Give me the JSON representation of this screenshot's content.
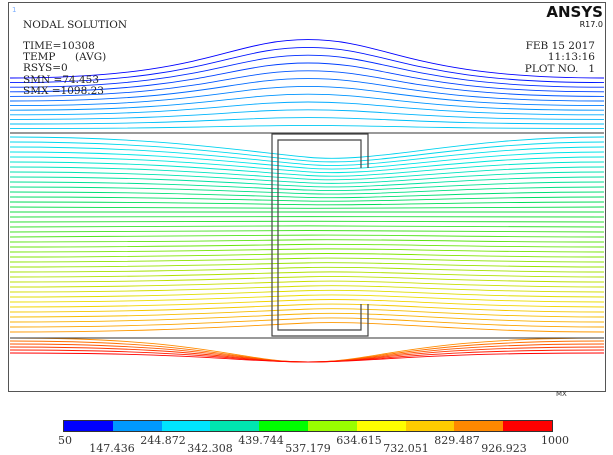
{
  "header": {
    "window_number": "1",
    "title": "NODAL SOLUTION",
    "time": "TIME=10308",
    "temp_label": "TEMP",
    "temp_avg": "(AVG)",
    "rsys": "RSYS=0",
    "smn": "SMN =74.453",
    "smx": "SMX =1098.23"
  },
  "brand": {
    "name": "ANSYS",
    "release": "R17.0"
  },
  "info": {
    "date": "FEB 15 2017",
    "time": "11:13:16",
    "plot_no": "PLOT NO.   1"
  },
  "marker": {
    "mx": "MX"
  },
  "legend": {
    "colors": [
      "#0000ff",
      "#0099ff",
      "#00e5ff",
      "#00e6b0",
      "#00ff00",
      "#99ff00",
      "#ffff00",
      "#ffcc00",
      "#ff8800",
      "#ff0000"
    ],
    "top_labels": [
      "50",
      "244.872",
      "439.744",
      "634.615",
      "829.487",
      "1000"
    ],
    "bottom_labels": [
      "147.436",
      "342.308",
      "537.179",
      "732.051",
      "926.923"
    ]
  },
  "chart_data": {
    "type": "heatmap",
    "series": [
      {
        "values": [
          50,
          147.436,
          244.872,
          342.308,
          439.744,
          537.179,
          634.615,
          732.051,
          829.487,
          926.923,
          1000
        ]
      }
    ]
  }
}
